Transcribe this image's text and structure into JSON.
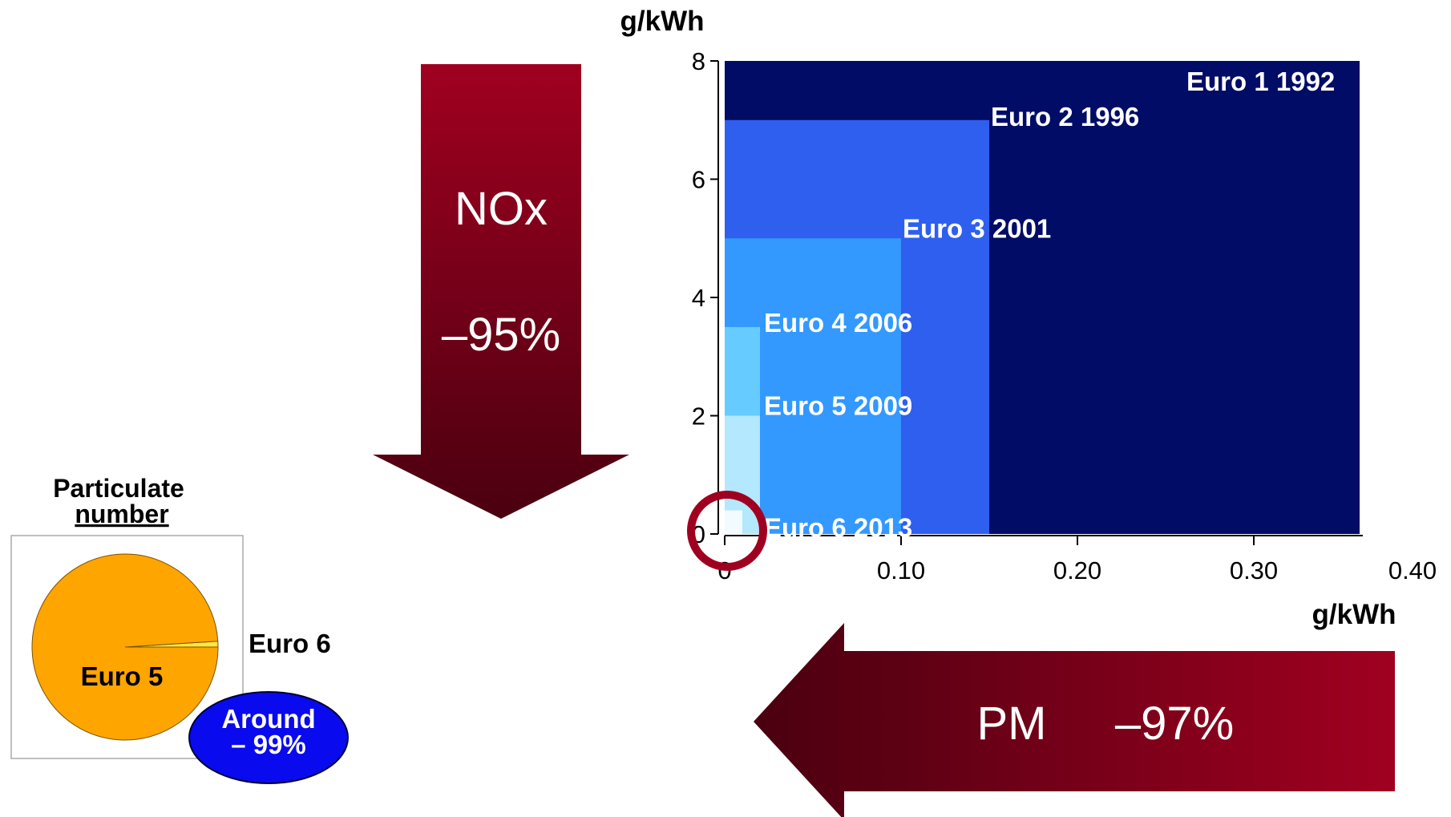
{
  "chart_data": [
    {
      "type": "area",
      "x_unit": "g/kWh",
      "y_unit": "g/kWh",
      "xlim": [
        0,
        0.4
      ],
      "ylim": [
        0,
        8
      ],
      "x_ticks": [
        "0",
        "0.10",
        "0.20",
        "0.30",
        "0.40"
      ],
      "y_ticks": [
        "0",
        "2",
        "4",
        "6",
        "8"
      ],
      "series": [
        {
          "name": "Euro 1 1992",
          "pm": 0.36,
          "nox": 8.0,
          "color": "#000c66"
        },
        {
          "name": "Euro 2 1996",
          "pm": 0.15,
          "nox": 7.0,
          "color": "#2e5fef"
        },
        {
          "name": "Euro 3 2001",
          "pm": 0.1,
          "nox": 5.0,
          "color": "#3399ff"
        },
        {
          "name": "Euro 4 2006",
          "pm": 0.02,
          "nox": 3.5,
          "color": "#66ccff"
        },
        {
          "name": "Euro 5 2009",
          "pm": 0.02,
          "nox": 2.0,
          "color": "#b3e8ff"
        },
        {
          "name": "Euro 6 2013",
          "pm": 0.01,
          "nox": 0.4,
          "color": "#f2fbff"
        }
      ]
    },
    {
      "type": "pie",
      "title_line1": "Particulate",
      "title_line2": "number",
      "slices": [
        {
          "name": "Euro 5",
          "value": 99,
          "color": "#ffa500"
        },
        {
          "name": "Euro 6",
          "value": 1,
          "color": "#ffe640"
        }
      ]
    }
  ],
  "nox_arrow": {
    "label": "NOx",
    "value": "–95%"
  },
  "pm_arrow": {
    "label": "PM",
    "value": "–97%"
  },
  "badge": {
    "line1": "Around",
    "line2": "– 99%"
  }
}
